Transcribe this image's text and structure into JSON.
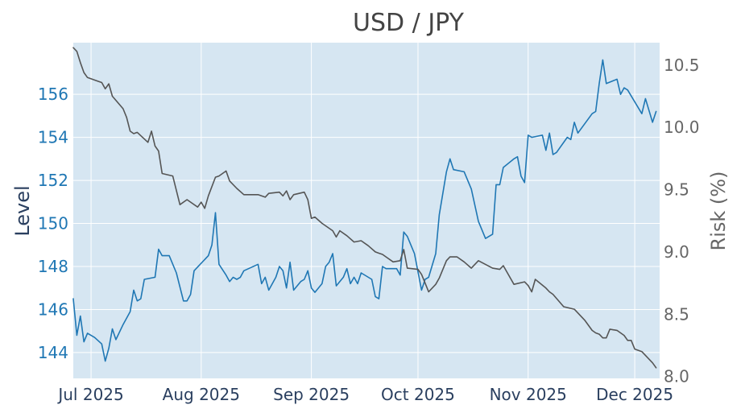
{
  "chart_data": {
    "type": "line",
    "title": "USD / JPY",
    "xlabel": "",
    "colors": {
      "level": "#1f77b4",
      "risk": "#555555",
      "plot_bg": "#d6e6f2",
      "grid": "#ffffff",
      "left_axis_text": "#1f77b4",
      "left_label_text": "#2a3f5f",
      "right_text": "#666666",
      "x_text": "#2a3f5f"
    },
    "x_axis": {
      "range": [
        "2025-06-26",
        "2025-12-08"
      ],
      "ticks": [
        {
          "date": "2025-07-01",
          "label": "Jul 2025"
        },
        {
          "date": "2025-08-01",
          "label": "Aug 2025"
        },
        {
          "date": "2025-09-01",
          "label": "Sep 2025"
        },
        {
          "date": "2025-10-01",
          "label": "Oct 2025"
        },
        {
          "date": "2025-11-01",
          "label": "Nov 2025"
        },
        {
          "date": "2025-12-01",
          "label": "Dec 2025"
        }
      ]
    },
    "y_left": {
      "label": "Level",
      "range": [
        142.8,
        158.4
      ],
      "ticks": [
        144,
        146,
        148,
        150,
        152,
        154,
        156
      ]
    },
    "y_right": {
      "label": "Risk (%)",
      "range": [
        7.985,
        10.68
      ],
      "ticks": [
        {
          "value": 8.0,
          "label": "8.0"
        },
        {
          "value": 8.5,
          "label": "8.5"
        },
        {
          "value": 9.0,
          "label": "9.0"
        },
        {
          "value": 9.5,
          "label": "9.5"
        },
        {
          "value": 10.0,
          "label": "10.0"
        },
        {
          "value": 10.5,
          "label": "10.5"
        }
      ]
    },
    "series": [
      {
        "key": "level",
        "axis": "left",
        "points": [
          [
            "2025-06-26",
            146.5
          ],
          [
            "2025-06-27",
            144.8
          ],
          [
            "2025-06-28",
            145.7
          ],
          [
            "2025-06-29",
            144.5
          ],
          [
            "2025-06-30",
            144.9
          ],
          [
            "2025-07-02",
            144.7
          ],
          [
            "2025-07-04",
            144.4
          ],
          [
            "2025-07-05",
            143.6
          ],
          [
            "2025-07-06",
            144.2
          ],
          [
            "2025-07-07",
            145.1
          ],
          [
            "2025-07-08",
            144.6
          ],
          [
            "2025-07-10",
            145.3
          ],
          [
            "2025-07-12",
            145.9
          ],
          [
            "2025-07-13",
            146.9
          ],
          [
            "2025-07-14",
            146.4
          ],
          [
            "2025-07-15",
            146.5
          ],
          [
            "2025-07-16",
            147.4
          ],
          [
            "2025-07-19",
            147.5
          ],
          [
            "2025-07-20",
            148.8
          ],
          [
            "2025-07-21",
            148.5
          ],
          [
            "2025-07-23",
            148.5
          ],
          [
            "2025-07-25",
            147.7
          ],
          [
            "2025-07-27",
            146.4
          ],
          [
            "2025-07-28",
            146.4
          ],
          [
            "2025-07-29",
            146.7
          ],
          [
            "2025-07-30",
            147.8
          ],
          [
            "2025-08-03",
            148.5
          ],
          [
            "2025-08-04",
            149.0
          ],
          [
            "2025-08-05",
            150.5
          ],
          [
            "2025-08-06",
            148.1
          ],
          [
            "2025-08-08",
            147.6
          ],
          [
            "2025-08-09",
            147.3
          ],
          [
            "2025-08-10",
            147.5
          ],
          [
            "2025-08-11",
            147.4
          ],
          [
            "2025-08-12",
            147.5
          ],
          [
            "2025-08-13",
            147.8
          ],
          [
            "2025-08-17",
            148.1
          ],
          [
            "2025-08-18",
            147.2
          ],
          [
            "2025-08-19",
            147.5
          ],
          [
            "2025-08-20",
            146.9
          ],
          [
            "2025-08-22",
            147.5
          ],
          [
            "2025-08-23",
            148.0
          ],
          [
            "2025-08-24",
            147.8
          ],
          [
            "2025-08-25",
            147.0
          ],
          [
            "2025-08-26",
            148.2
          ],
          [
            "2025-08-27",
            146.9
          ],
          [
            "2025-08-29",
            147.3
          ],
          [
            "2025-08-30",
            147.4
          ],
          [
            "2025-08-31",
            147.8
          ],
          [
            "2025-09-01",
            147.0
          ],
          [
            "2025-09-02",
            146.8
          ],
          [
            "2025-09-04",
            147.2
          ],
          [
            "2025-09-05",
            148.0
          ],
          [
            "2025-09-06",
            148.2
          ],
          [
            "2025-09-07",
            148.6
          ],
          [
            "2025-09-08",
            147.1
          ],
          [
            "2025-09-10",
            147.5
          ],
          [
            "2025-09-11",
            147.9
          ],
          [
            "2025-09-12",
            147.2
          ],
          [
            "2025-09-13",
            147.5
          ],
          [
            "2025-09-14",
            147.2
          ],
          [
            "2025-09-15",
            147.7
          ],
          [
            "2025-09-18",
            147.4
          ],
          [
            "2025-09-19",
            146.6
          ],
          [
            "2025-09-20",
            146.5
          ],
          [
            "2025-09-21",
            148.0
          ],
          [
            "2025-09-22",
            147.9
          ],
          [
            "2025-09-25",
            147.9
          ],
          [
            "2025-09-26",
            147.6
          ],
          [
            "2025-09-27",
            149.6
          ],
          [
            "2025-09-28",
            149.4
          ],
          [
            "2025-09-30",
            148.6
          ],
          [
            "2025-10-02",
            146.9
          ],
          [
            "2025-10-03",
            147.4
          ],
          [
            "2025-10-04",
            147.5
          ],
          [
            "2025-10-06",
            148.6
          ],
          [
            "2025-10-07",
            150.4
          ],
          [
            "2025-10-09",
            152.4
          ],
          [
            "2025-10-10",
            153.0
          ],
          [
            "2025-10-11",
            152.5
          ],
          [
            "2025-10-14",
            152.4
          ],
          [
            "2025-10-16",
            151.6
          ],
          [
            "2025-10-18",
            150.1
          ],
          [
            "2025-10-19",
            149.7
          ],
          [
            "2025-10-20",
            149.3
          ],
          [
            "2025-10-22",
            149.5
          ],
          [
            "2025-10-23",
            151.8
          ],
          [
            "2025-10-24",
            151.8
          ],
          [
            "2025-10-25",
            152.6
          ],
          [
            "2025-10-28",
            153.0
          ],
          [
            "2025-10-29",
            153.1
          ],
          [
            "2025-10-30",
            152.2
          ],
          [
            "2025-10-31",
            151.9
          ],
          [
            "2025-11-01",
            154.1
          ],
          [
            "2025-11-02",
            154.0
          ],
          [
            "2025-11-05",
            154.1
          ],
          [
            "2025-11-06",
            153.4
          ],
          [
            "2025-11-07",
            154.2
          ],
          [
            "2025-11-08",
            153.2
          ],
          [
            "2025-11-09",
            153.3
          ],
          [
            "2025-11-12",
            154.0
          ],
          [
            "2025-11-13",
            153.9
          ],
          [
            "2025-11-14",
            154.7
          ],
          [
            "2025-11-15",
            154.2
          ],
          [
            "2025-11-19",
            155.1
          ],
          [
            "2025-11-20",
            155.2
          ],
          [
            "2025-11-21",
            156.5
          ],
          [
            "2025-11-22",
            157.6
          ],
          [
            "2025-11-23",
            156.5
          ],
          [
            "2025-11-26",
            156.7
          ],
          [
            "2025-11-27",
            156.0
          ],
          [
            "2025-11-28",
            156.3
          ],
          [
            "2025-11-29",
            156.2
          ],
          [
            "2025-12-03",
            155.1
          ],
          [
            "2025-12-04",
            155.8
          ],
          [
            "2025-12-06",
            154.7
          ],
          [
            "2025-12-07",
            155.2
          ]
        ]
      },
      {
        "key": "risk",
        "axis": "right",
        "points": [
          [
            "2025-06-26",
            10.64
          ],
          [
            "2025-06-27",
            10.61
          ],
          [
            "2025-06-28",
            10.52
          ],
          [
            "2025-06-29",
            10.44
          ],
          [
            "2025-06-30",
            10.4
          ],
          [
            "2025-07-03",
            10.37
          ],
          [
            "2025-07-04",
            10.36
          ],
          [
            "2025-07-05",
            10.31
          ],
          [
            "2025-07-06",
            10.35
          ],
          [
            "2025-07-07",
            10.25
          ],
          [
            "2025-07-10",
            10.15
          ],
          [
            "2025-07-11",
            10.08
          ],
          [
            "2025-07-12",
            9.97
          ],
          [
            "2025-07-13",
            9.95
          ],
          [
            "2025-07-14",
            9.96
          ],
          [
            "2025-07-17",
            9.88
          ],
          [
            "2025-07-18",
            9.97
          ],
          [
            "2025-07-19",
            9.85
          ],
          [
            "2025-07-20",
            9.81
          ],
          [
            "2025-07-21",
            9.63
          ],
          [
            "2025-07-24",
            9.61
          ],
          [
            "2025-07-26",
            9.38
          ],
          [
            "2025-07-28",
            9.42
          ],
          [
            "2025-07-31",
            9.36
          ],
          [
            "2025-08-01",
            9.4
          ],
          [
            "2025-08-02",
            9.35
          ],
          [
            "2025-08-03",
            9.45
          ],
          [
            "2025-08-05",
            9.6
          ],
          [
            "2025-08-06",
            9.61
          ],
          [
            "2025-08-08",
            9.65
          ],
          [
            "2025-08-09",
            9.57
          ],
          [
            "2025-08-11",
            9.51
          ],
          [
            "2025-08-13",
            9.46
          ],
          [
            "2025-08-17",
            9.46
          ],
          [
            "2025-08-19",
            9.44
          ],
          [
            "2025-08-20",
            9.47
          ],
          [
            "2025-08-23",
            9.48
          ],
          [
            "2025-08-24",
            9.45
          ],
          [
            "2025-08-25",
            9.49
          ],
          [
            "2025-08-26",
            9.42
          ],
          [
            "2025-08-27",
            9.46
          ],
          [
            "2025-08-30",
            9.48
          ],
          [
            "2025-08-31",
            9.42
          ],
          [
            "2025-09-01",
            9.27
          ],
          [
            "2025-09-02",
            9.28
          ],
          [
            "2025-09-04",
            9.23
          ],
          [
            "2025-09-07",
            9.17
          ],
          [
            "2025-09-08",
            9.12
          ],
          [
            "2025-09-09",
            9.17
          ],
          [
            "2025-09-11",
            9.13
          ],
          [
            "2025-09-13",
            9.08
          ],
          [
            "2025-09-15",
            9.09
          ],
          [
            "2025-09-17",
            9.05
          ],
          [
            "2025-09-19",
            9.0
          ],
          [
            "2025-09-20",
            8.99
          ],
          [
            "2025-09-21",
            8.98
          ],
          [
            "2025-09-22",
            8.96
          ],
          [
            "2025-09-24",
            8.92
          ],
          [
            "2025-09-26",
            8.93
          ],
          [
            "2025-09-27",
            9.02
          ],
          [
            "2025-09-28",
            8.87
          ],
          [
            "2025-10-01",
            8.86
          ],
          [
            "2025-10-02",
            8.82
          ],
          [
            "2025-10-03",
            8.75
          ],
          [
            "2025-10-04",
            8.68
          ],
          [
            "2025-10-06",
            8.74
          ],
          [
            "2025-10-07",
            8.79
          ],
          [
            "2025-10-09",
            8.93
          ],
          [
            "2025-10-10",
            8.96
          ],
          [
            "2025-10-12",
            8.96
          ],
          [
            "2025-10-14",
            8.92
          ],
          [
            "2025-10-16",
            8.87
          ],
          [
            "2025-10-18",
            8.93
          ],
          [
            "2025-10-22",
            8.87
          ],
          [
            "2025-10-24",
            8.86
          ],
          [
            "2025-10-25",
            8.89
          ],
          [
            "2025-10-28",
            8.74
          ],
          [
            "2025-10-31",
            8.76
          ],
          [
            "2025-11-01",
            8.73
          ],
          [
            "2025-11-02",
            8.68
          ],
          [
            "2025-11-03",
            8.78
          ],
          [
            "2025-11-06",
            8.71
          ],
          [
            "2025-11-07",
            8.68
          ],
          [
            "2025-11-08",
            8.66
          ],
          [
            "2025-11-11",
            8.56
          ],
          [
            "2025-11-14",
            8.54
          ],
          [
            "2025-11-17",
            8.45
          ],
          [
            "2025-11-19",
            8.37
          ],
          [
            "2025-11-20",
            8.35
          ],
          [
            "2025-11-21",
            8.34
          ],
          [
            "2025-11-22",
            8.31
          ],
          [
            "2025-11-23",
            8.31
          ],
          [
            "2025-11-24",
            8.38
          ],
          [
            "2025-11-26",
            8.37
          ],
          [
            "2025-11-28",
            8.33
          ],
          [
            "2025-11-29",
            8.29
          ],
          [
            "2025-11-30",
            8.29
          ],
          [
            "2025-12-01",
            8.22
          ],
          [
            "2025-12-03",
            8.2
          ],
          [
            "2025-12-04",
            8.17
          ],
          [
            "2025-12-06",
            8.11
          ],
          [
            "2025-12-07",
            8.07
          ]
        ]
      }
    ]
  }
}
